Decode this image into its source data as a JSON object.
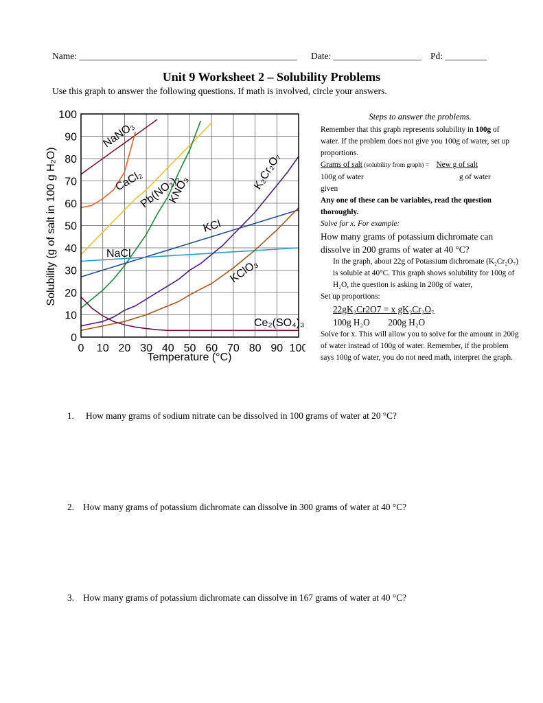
{
  "header": {
    "name": "Name: _______________________________________________",
    "date": "Date: ___________________",
    "pd": "Pd: _________"
  },
  "title": "Unit 9 Worksheet 2 – Solubility Problems",
  "instructions": "Use this graph to answer the following questions. If math is involved, circle your answers.",
  "chart_data": {
    "type": "line",
    "x_label": "Temperature (°C)",
    "y_label": "Solubility (g of salt in 100 g H₂O)",
    "x": [
      0,
      5,
      10,
      15,
      20,
      25,
      30,
      35,
      40,
      45,
      50,
      55,
      60,
      65,
      70,
      75,
      80,
      85,
      90,
      95,
      100
    ],
    "xlim": [
      0,
      100
    ],
    "xticks": [
      0,
      10,
      20,
      30,
      40,
      50,
      60,
      70,
      80,
      90,
      100
    ],
    "ylim": [
      0,
      100
    ],
    "yticks": [
      0,
      10,
      20,
      30,
      40,
      50,
      60,
      70,
      80,
      90,
      100
    ],
    "grid": true,
    "series": [
      {
        "name": "NaNO₃",
        "color": "#7a1233",
        "values": [
          73,
          76.5,
          80,
          83.5,
          87,
          90.5,
          94,
          97.5,
          null,
          null,
          null,
          null,
          null,
          null,
          null,
          null,
          null,
          null,
          null,
          null,
          null
        ]
      },
      {
        "name": "CaCl₂",
        "color": "#e2642a",
        "values": [
          58,
          59,
          62,
          66,
          74,
          92,
          null,
          null,
          null,
          null,
          null,
          null,
          null,
          null,
          null,
          null,
          null,
          null,
          null,
          null,
          null
        ]
      },
      {
        "name": "Pb(NO₃)₂",
        "color": "#f0c020",
        "values": [
          37,
          42,
          47,
          52,
          57,
          62,
          66,
          71,
          76,
          81,
          86,
          91,
          96,
          null,
          null,
          null,
          null,
          null,
          null,
          null,
          null
        ]
      },
      {
        "name": "KNO₃",
        "color": "#1a8a3a",
        "values": [
          13,
          17,
          21,
          26,
          32,
          39,
          46,
          55,
          63,
          74,
          84,
          97,
          null,
          null,
          null,
          null,
          null,
          null,
          null,
          null,
          null
        ]
      },
      {
        "name": "KCl",
        "color": "#1f4f8f",
        "values": [
          27,
          28.5,
          30,
          31.5,
          33,
          34.5,
          36,
          37.5,
          39,
          40.5,
          42,
          43.5,
          45,
          46.5,
          48,
          49.5,
          51,
          52.5,
          54,
          55.5,
          57
        ]
      },
      {
        "name": "NaCl",
        "color": "#2a9ad0",
        "values": [
          34,
          34.3,
          34.6,
          34.9,
          35.2,
          35.5,
          35.8,
          36.1,
          36.4,
          36.7,
          37,
          37.3,
          37.6,
          37.9,
          38.2,
          38.5,
          38.8,
          39.1,
          39.4,
          39.7,
          40
        ]
      },
      {
        "name": "K₂Cr₂O₇",
        "color": "#4a1a7a",
        "values": [
          5,
          6,
          7,
          9,
          12,
          14,
          17,
          20,
          23,
          26,
          30,
          33,
          37,
          41,
          46,
          51,
          56,
          62,
          68,
          74,
          81
        ]
      },
      {
        "name": "KClO₃",
        "color": "#a85518",
        "values": [
          3,
          4,
          5,
          6,
          7,
          8.5,
          10,
          12,
          14,
          16,
          19,
          21.5,
          24,
          27.5,
          31,
          35,
          39,
          43.5,
          48,
          53,
          58
        ]
      },
      {
        "name": "Ce₂(SO₄)₃",
        "color": "#6a1040",
        "values": [
          18,
          13,
          9.5,
          7,
          5.5,
          4.5,
          3.8,
          3.3,
          3,
          3,
          3,
          3,
          3,
          3,
          3,
          3,
          3,
          3,
          3,
          3,
          3
        ]
      }
    ]
  },
  "steps": {
    "heading": "Steps to answer the problems.",
    "p1a": "Remember that this graph represents solubility in",
    "p1b": "100g",
    "p1c": " of water. If the problem does not give you 100g of water, set up proportions.",
    "prop_num_left": "Grams of salt",
    "prop_note": " (solubility from graph)  = ",
    "prop_num_right": "New g of salt",
    "prop_den_left": "100g of water",
    "prop_den_right": "g of water",
    "prop_given": "given",
    "bold": "Any one of these can be variables, read the question thoroughly.",
    "example_intro": "Solve for x. For example:",
    "example_q": "How many grams of potassium dichromate can dissolve in 200 grams of water at 40 °C?",
    "explain": "In the graph, about 22g of Potassium dichromate (K₂Cr₂O₇) is soluble at 40°C. This graph shows solubility for 100g of H₂O, the question is asking in 200g of water,",
    "setup": "Set up proportions:",
    "eq_num": "22gK₂Cr2O7  =  x gK₂Cr₂O₇",
    "eq_den": "100g H₂O        200g H₂O",
    "final": "Solve for x. This will allow you to solve for the amount in 200g of water instead of 100g of water. Remember, if the problem says 100g of water, you do not need math, interpret the graph."
  },
  "questions": [
    {
      "number": "1.",
      "text": "How many grams of sodium nitrate can be dissolved in 100 grams of water at 20 °C?"
    },
    {
      "number": "2.",
      "text": "How many grams of potassium dichromate can dissolve in 300 grams of water at 40 °C?"
    },
    {
      "number": "3.",
      "text": "How many grams of potassium dichromate can dissolve in 167 grams of water at 40 °C?"
    }
  ]
}
